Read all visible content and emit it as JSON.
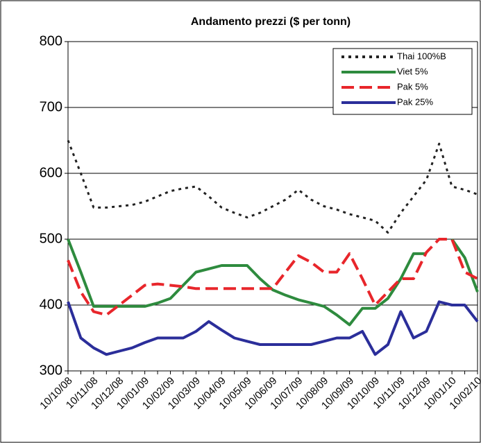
{
  "chart_data": {
    "type": "line",
    "title": "Andamento prezzi ($ per tonn)",
    "categories": [
      "10/10/08",
      null,
      "10/11/08",
      null,
      "10/12/08",
      null,
      "10/01/09",
      null,
      "10/02/09",
      null,
      "10/03/09",
      null,
      "10/04/09",
      null,
      "10/05/09",
      null,
      "10/06/09",
      null,
      "10/07/09",
      null,
      "10/08/09",
      null,
      "10/09/09",
      null,
      "10/10/09",
      null,
      "10/11/09",
      null,
      "10/12/09",
      null,
      "10/01/10",
      null,
      "10/02/10"
    ],
    "series": [
      {
        "name": "Thai 100%B",
        "color": "#222222",
        "dash": "dotted",
        "values": [
          650,
          600,
          548,
          548,
          550,
          552,
          557,
          565,
          573,
          577,
          580,
          565,
          548,
          540,
          533,
          540,
          550,
          560,
          575,
          560,
          550,
          545,
          538,
          533,
          528,
          510,
          540,
          565,
          590,
          645,
          580,
          575,
          568
        ]
      },
      {
        "name": "Viet 5%",
        "color": "#2e8b3e",
        "dash": "solid",
        "values": [
          500,
          450,
          398,
          398,
          398,
          398,
          398,
          403,
          410,
          430,
          450,
          455,
          460,
          460,
          460,
          440,
          423,
          415,
          408,
          403,
          398,
          385,
          370,
          395,
          395,
          410,
          440,
          478,
          478,
          null,
          500,
          472,
          420
        ]
      },
      {
        "name": "Pak 5%",
        "color": "#e8262b",
        "dash": "dashed",
        "values": [
          468,
          420,
          390,
          385,
          400,
          415,
          430,
          432,
          430,
          428,
          425,
          425,
          425,
          425,
          425,
          425,
          425,
          450,
          475,
          465,
          450,
          450,
          478,
          440,
          400,
          420,
          440,
          440,
          480,
          500,
          500,
          450,
          440
        ]
      },
      {
        "name": "Pak 25%",
        "color": "#2b2e9a",
        "dash": "solid",
        "values": [
          405,
          350,
          335,
          325,
          330,
          335,
          343,
          350,
          350,
          350,
          360,
          375,
          362,
          350,
          345,
          340,
          340,
          340,
          340,
          340,
          345,
          350,
          350,
          360,
          325,
          340,
          390,
          350,
          360,
          405,
          400,
          400,
          375
        ]
      }
    ],
    "ylim": [
      300,
      800
    ],
    "yticks": [
      300,
      400,
      500,
      600,
      700,
      800
    ],
    "grid": true,
    "legend": "top-right"
  }
}
